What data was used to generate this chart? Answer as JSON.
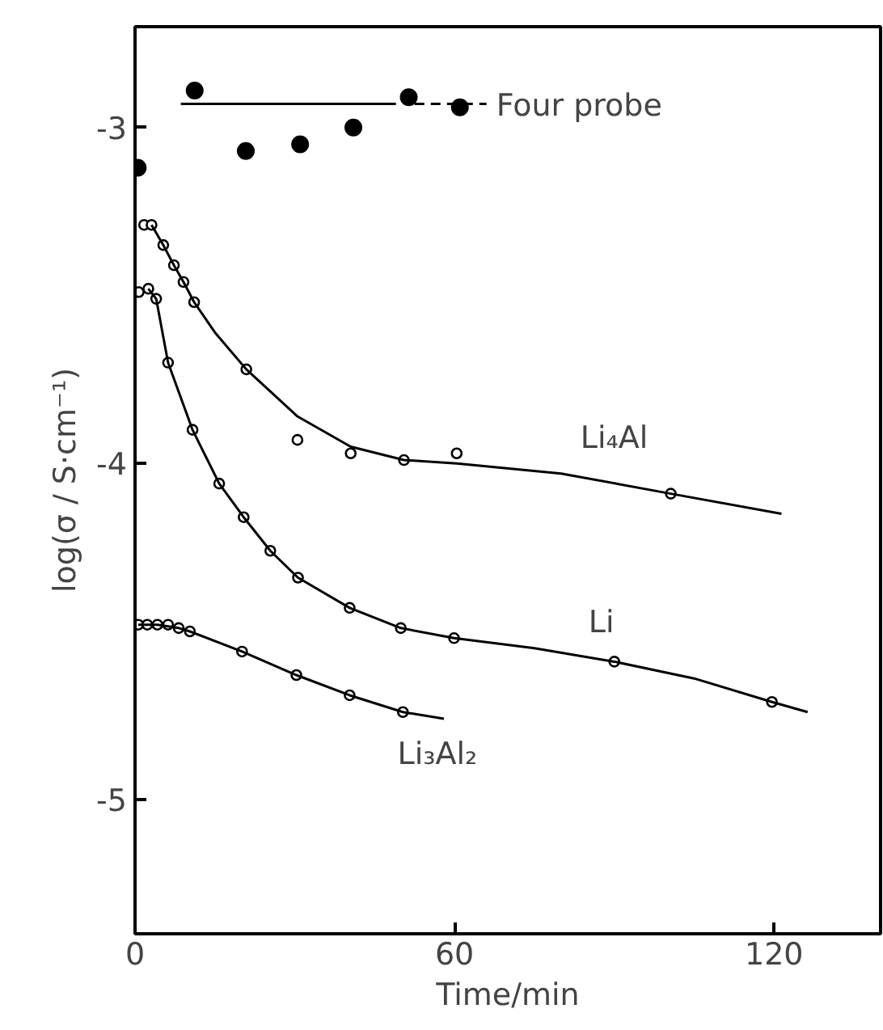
{
  "chart_data": {
    "type": "scatter",
    "xlabel": "Time/min",
    "ylabel": "log(σ / S·cm⁻¹)",
    "xlim": [
      0,
      140
    ],
    "ylim": [
      -5.4,
      -2.7
    ],
    "xticks": [
      0,
      60,
      120
    ],
    "yticks": [
      -3,
      -4,
      -5
    ],
    "grid": false,
    "series": [
      {
        "marker": "circle",
        "color": "#000000",
        "x": [
          0.5,
          11.2,
          20.8,
          31,
          41,
          51.4,
          61
        ],
        "values": [
          -3.12,
          -2.89,
          -3.07,
          -3.05,
          -3.0,
          -2.91,
          -2.94
        ]
      },
      {
        "type": "line",
        "marker": "none",
        "color": "#000000",
        "x": [
          8.6,
          49
        ],
        "values": [
          -2.93,
          -2.93
        ]
      },
      {
        "type": "line",
        "marker": "none",
        "color": "#000000",
        "line_style": "dashed",
        "x": [
          52.5,
          66
        ],
        "values": [
          -2.93,
          -2.93
        ]
      },
      {
        "marker": "open_circle",
        "color": "#000000",
        "x": [
          1.7,
          3.1,
          5.3,
          7.3,
          9.1,
          11.1,
          20.9,
          30.5,
          40.5,
          50.5,
          60.4,
          100.6
        ],
        "values": [
          -3.29,
          -3.29,
          -3.35,
          -3.41,
          -3.46,
          -3.52,
          -3.72,
          -3.93,
          -3.97,
          -3.99,
          -3.97,
          -4.09
        ]
      },
      {
        "type": "line",
        "marker": "none",
        "color": "#000000",
        "x": [
          3.1,
          5.3,
          7.3,
          9.1,
          11.1,
          15,
          20.9,
          30.5,
          40.5,
          50.5,
          60.4,
          80,
          100.6,
          121.4
        ],
        "values": [
          -3.29,
          -3.35,
          -3.41,
          -3.46,
          -3.52,
          -3.61,
          -3.72,
          -3.86,
          -3.95,
          -3.99,
          -4.0,
          -4.03,
          -4.09,
          -4.15
        ]
      },
      {
        "marker": "open_circle",
        "color": "#000000",
        "x": [
          0.7,
          2.5,
          3.97,
          6.2,
          10.8,
          15.8,
          20.4,
          25.4,
          30.6,
          40.3,
          49.9,
          59.9,
          90,
          119.6
        ],
        "values": [
          -3.49,
          -3.48,
          -3.51,
          -3.7,
          -3.9,
          -4.06,
          -4.16,
          -4.26,
          -4.34,
          -4.43,
          -4.49,
          -4.52,
          -4.59,
          -4.71
        ]
      },
      {
        "type": "line",
        "marker": "none",
        "color": "#000000",
        "x": [
          2.5,
          3.97,
          6.2,
          10.8,
          15.8,
          20.4,
          25.4,
          30.6,
          40.3,
          49.9,
          59.9,
          75,
          90,
          105,
          119.6,
          126.3
        ],
        "values": [
          -3.48,
          -3.51,
          -3.7,
          -3.9,
          -4.06,
          -4.16,
          -4.26,
          -4.34,
          -4.43,
          -4.49,
          -4.52,
          -4.55,
          -4.59,
          -4.64,
          -4.71,
          -4.74
        ]
      },
      {
        "marker": "open_circle",
        "color": "#000000",
        "x": [
          0.6,
          2.3,
          4.2,
          6.2,
          8.2,
          10.3,
          20.1,
          30.3,
          40.3,
          50.3
        ],
        "values": [
          -4.48,
          -4.48,
          -4.48,
          -4.48,
          -4.49,
          -4.5,
          -4.56,
          -4.63,
          -4.69,
          -4.74
        ]
      },
      {
        "type": "line",
        "marker": "none",
        "color": "#000000",
        "x": [
          0.6,
          4.2,
          8.2,
          10.3,
          20.1,
          30.3,
          40.3,
          50.3,
          58
        ],
        "values": [
          -4.48,
          -4.48,
          -4.49,
          -4.5,
          -4.56,
          -4.63,
          -4.69,
          -4.74,
          -4.76
        ]
      }
    ],
    "annotations": [
      {
        "text": "Four probe",
        "x": 66,
        "y": -2.93
      },
      {
        "text": "Li₄Al",
        "x": 80,
        "y": -4.03
      },
      {
        "text": "Li",
        "x": 90,
        "y": -4.59
      },
      {
        "text": "Li₃Al₂",
        "x": 58,
        "y": -4.76
      }
    ]
  }
}
